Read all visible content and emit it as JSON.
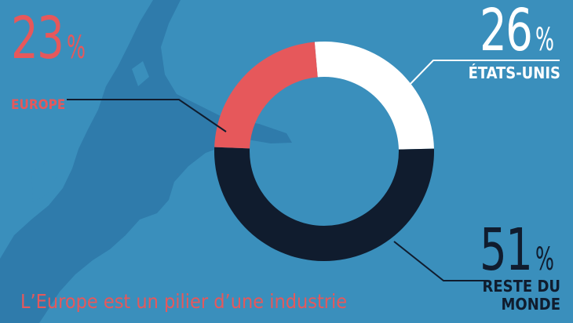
{
  "chart_data": {
    "type": "pie",
    "categories": [
      "ÉTATS-UNIS",
      "RESTE DU MONDE",
      "EUROPE"
    ],
    "values": [
      26,
      51,
      23
    ],
    "value_labels": [
      "26",
      "51",
      "23"
    ],
    "unit": "%"
  },
  "labels": {
    "europe": {
      "value": "23",
      "unit": "%",
      "name": "EUROPE"
    },
    "usa": {
      "value": "26",
      "unit": "%",
      "name": "ÉTATS-UNIS"
    },
    "rest": {
      "value": "51",
      "unit": "%",
      "name": "RESTE DU MONDE"
    }
  },
  "caption": "L’Europe est un pilier d’une industrie",
  "colors": {
    "background": "#3a8fbc",
    "map": "#2f7bab",
    "europe": "#e6585b",
    "usa": "#ffffff",
    "rest": "#101c2e",
    "leader_light": "#ffffff",
    "leader_dark": "#101c2e"
  }
}
